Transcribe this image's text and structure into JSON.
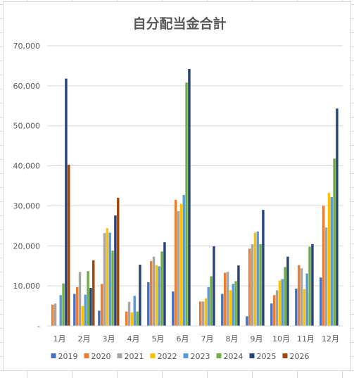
{
  "chart_data": {
    "type": "bar",
    "title": "自分配当金合計",
    "xlabel": "",
    "ylabel": "",
    "ylim": [
      0,
      70000
    ],
    "y_ticks": [
      "-",
      "10,000",
      "20,000",
      "30,000",
      "40,000",
      "50,000",
      "60,000",
      "70,000"
    ],
    "y_tick_values": [
      0,
      10000,
      20000,
      30000,
      40000,
      50000,
      60000,
      70000
    ],
    "grid": true,
    "legend_position": "bottom",
    "categories": [
      "1月",
      "2月",
      "3月",
      "4月",
      "5月",
      "6月",
      "7月",
      "8月",
      "9月",
      "10月",
      "11月",
      "12月"
    ],
    "series": [
      {
        "name": "2019",
        "color": "#4472C4",
        "values": [
          0,
          8000,
          3800,
          0,
          10900,
          8600,
          0,
          8000,
          2400,
          5600,
          9300,
          12100
        ]
      },
      {
        "name": "2020",
        "color": "#ED7D31",
        "values": [
          5300,
          9700,
          10500,
          3600,
          16200,
          31500,
          6100,
          13300,
          19300,
          7700,
          15200,
          30000
        ]
      },
      {
        "name": "2021",
        "color": "#A5A5A5",
        "values": [
          5600,
          13500,
          23200,
          6000,
          17300,
          28700,
          6100,
          13500,
          20400,
          8900,
          14400,
          24600
        ]
      },
      {
        "name": "2022",
        "color": "#FFC000",
        "values": [
          0,
          5000,
          24400,
          3400,
          15200,
          30500,
          6900,
          8900,
          23300,
          11300,
          9200,
          33200
        ]
      },
      {
        "name": "2023",
        "color": "#5B9BD5",
        "values": [
          7700,
          7800,
          23300,
          7500,
          14900,
          32700,
          9700,
          10500,
          23600,
          11700,
          13100,
          32200
        ]
      },
      {
        "name": "2024",
        "color": "#70AD47",
        "values": [
          10600,
          13700,
          18800,
          3600,
          18600,
          60800,
          12400,
          11200,
          20400,
          14700,
          19800,
          41800
        ]
      },
      {
        "name": "2025",
        "color": "#264478",
        "values": [
          61800,
          9500,
          27600,
          15300,
          20900,
          64200,
          19900,
          15100,
          29000,
          17300,
          20400,
          54300
        ]
      },
      {
        "name": "2026",
        "color": "#9E480E",
        "values": [
          40300,
          16400,
          32000,
          0,
          0,
          0,
          0,
          0,
          0,
          0,
          0,
          0
        ]
      }
    ]
  }
}
